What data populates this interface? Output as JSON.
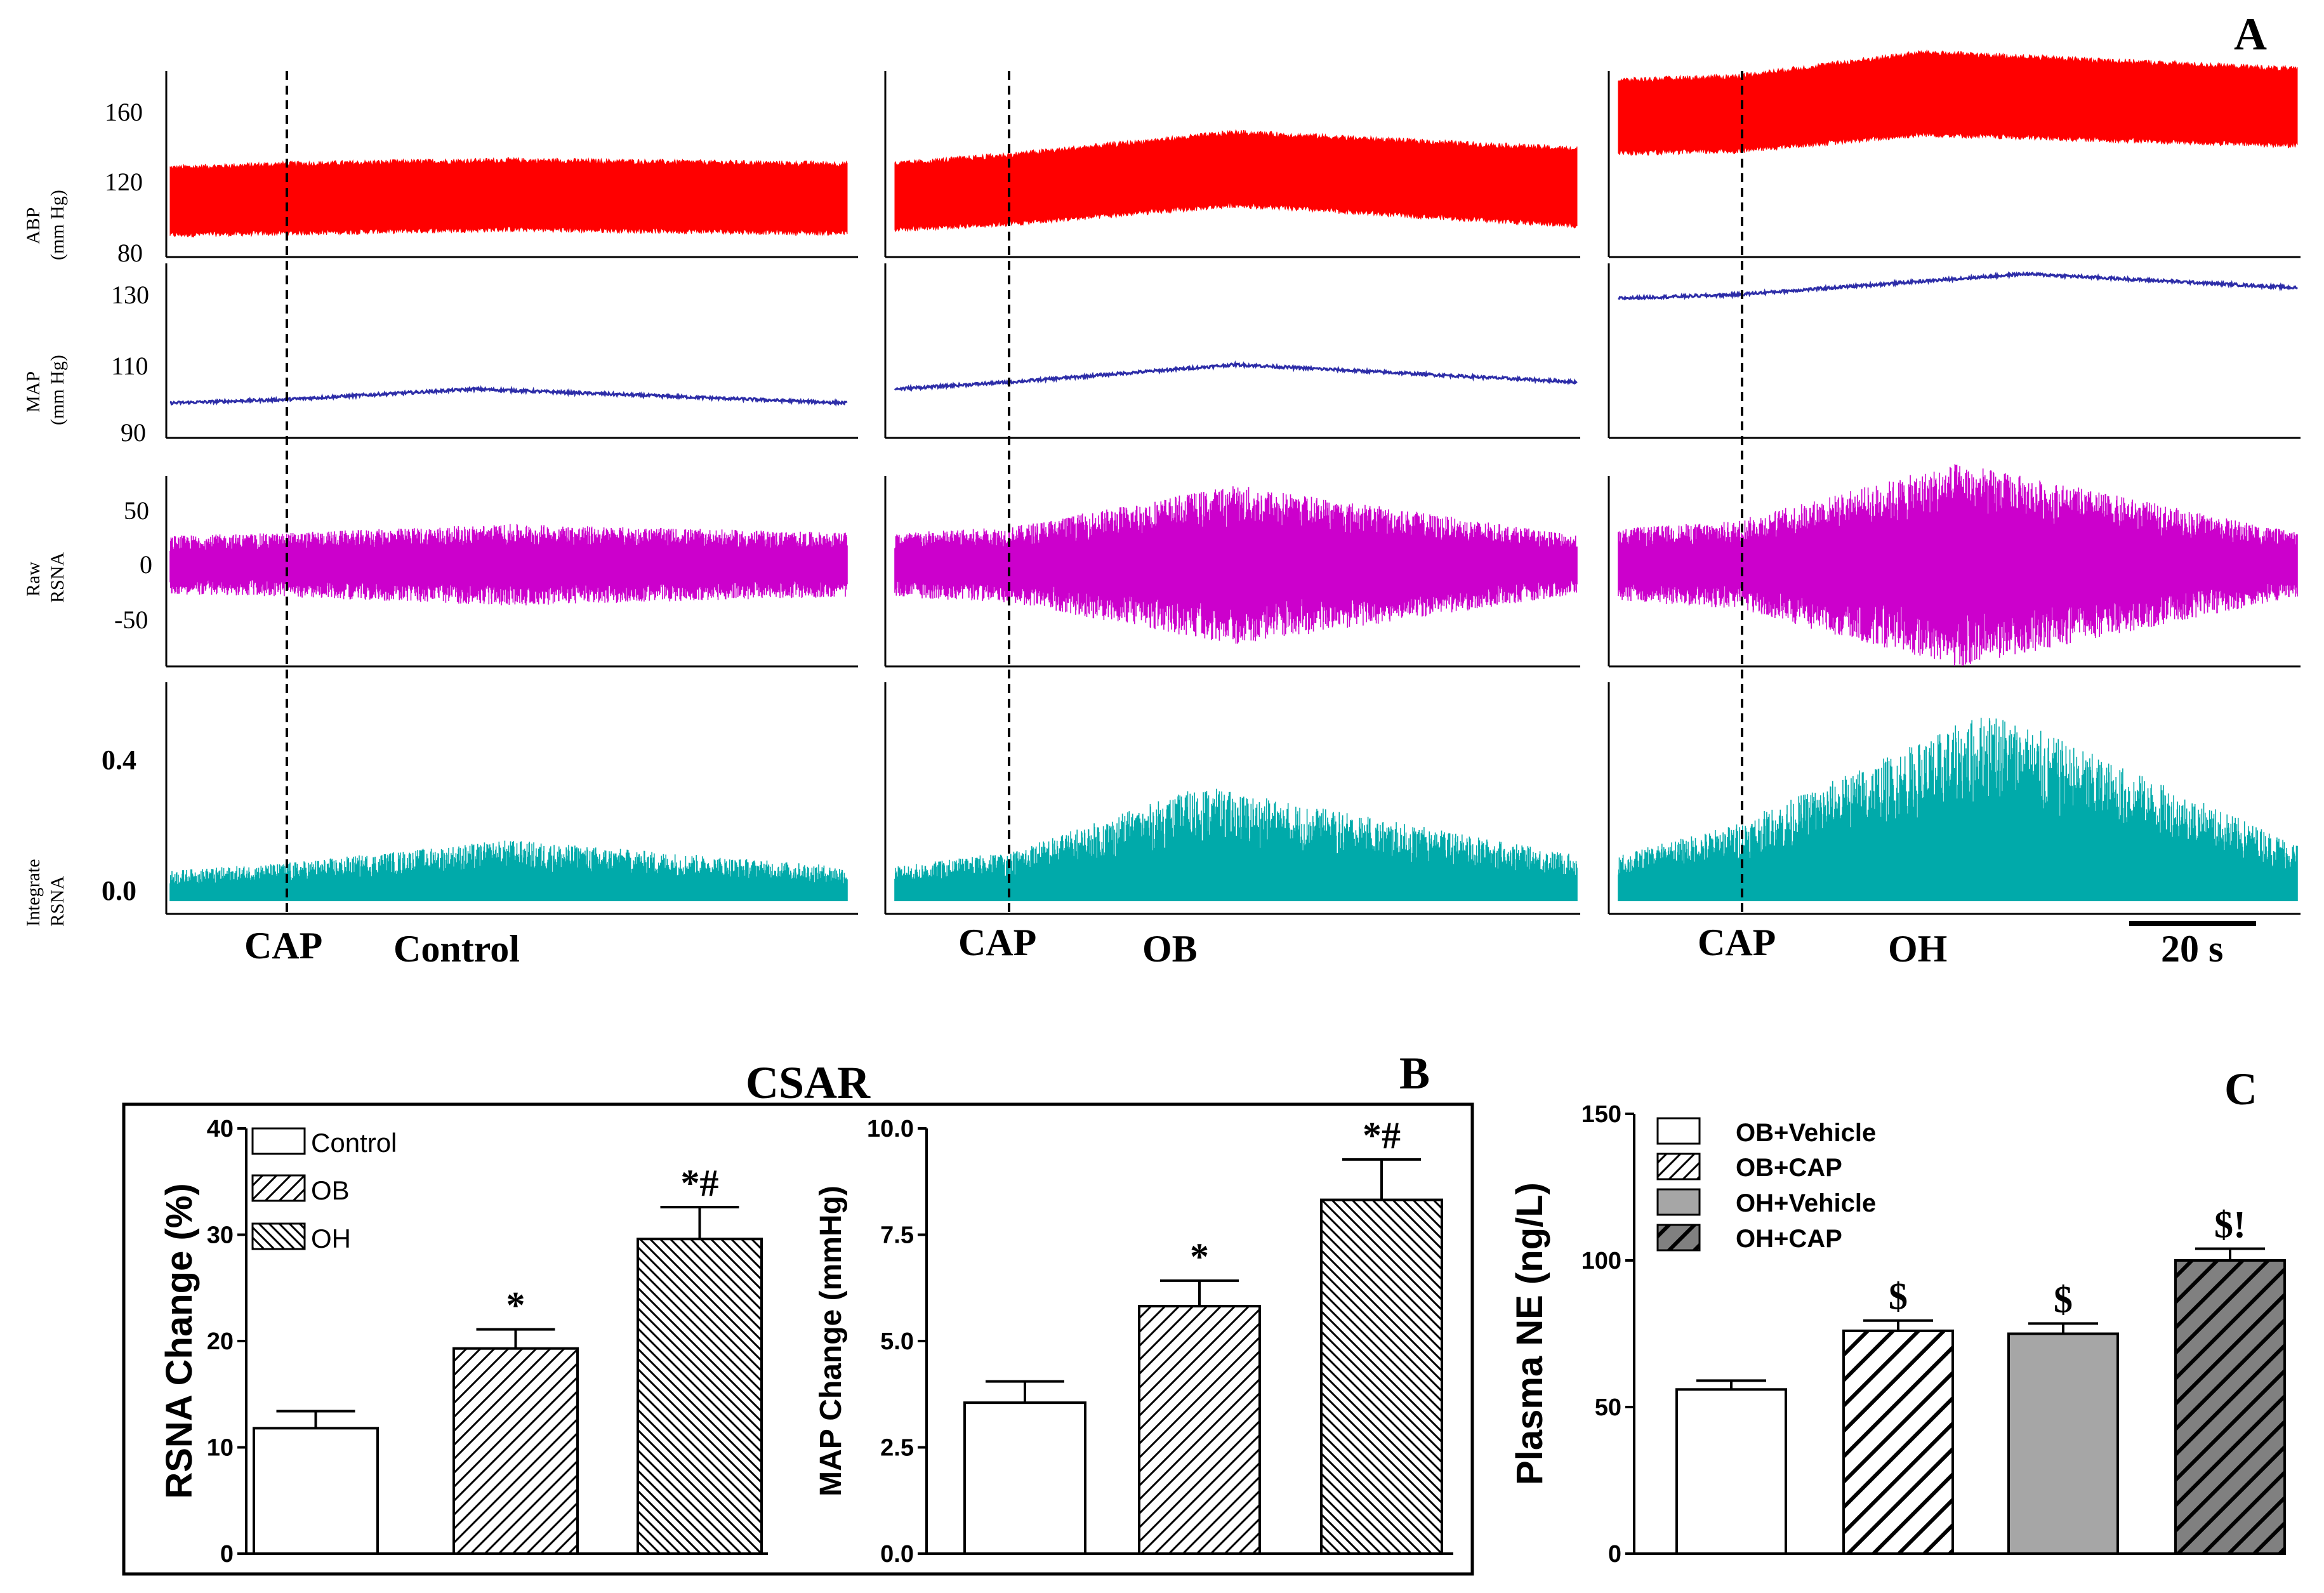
{
  "colors": {
    "abp": "#ff0000",
    "map": "#2d2da8",
    "raw": "#cc00cc",
    "integrate": "#00aaaa",
    "oh_vehicle": "#a6a6a6",
    "oh_cap": "#808080"
  },
  "panel_a": {
    "label": "A",
    "rows": [
      {
        "key": "abp",
        "ylabel": [
          "ABP",
          "(mm Hg)"
        ],
        "ticks": [
          "160",
          "120",
          "80"
        ]
      },
      {
        "key": "map",
        "ylabel": [
          "MAP",
          "(mm Hg)"
        ],
        "ticks": [
          "130",
          "110",
          "90"
        ]
      },
      {
        "key": "raw",
        "ylabel": [
          "Raw",
          "RSNA"
        ],
        "ticks": [
          "50",
          "0",
          "-50"
        ]
      },
      {
        "key": "integrate",
        "ylabel": [
          "Integrate",
          "RSNA"
        ],
        "ticks": [
          "0.4",
          "0.0"
        ]
      }
    ],
    "groups": [
      "Control",
      "OB",
      "OH"
    ],
    "marker": "CAP",
    "scale_bar": "20 s"
  },
  "chart_data": [
    {
      "type": "line",
      "title": "A",
      "description_groups": [
        "Control",
        "OB",
        "OH"
      ],
      "series": [
        {
          "name": "ABP (mm Hg) Control",
          "x": [
            0,
            0.17,
            0.5,
            1.0
          ],
          "upper": [
            128,
            130,
            132,
            130
          ],
          "lower": [
            92,
            93,
            95,
            93
          ]
        },
        {
          "name": "ABP (mm Hg) OB",
          "x": [
            0,
            0.17,
            0.5,
            1.0
          ],
          "upper": [
            130,
            135,
            147,
            138
          ],
          "lower": [
            95,
            98,
            108,
            97
          ]
        },
        {
          "name": "ABP (mm Hg) OH",
          "x": [
            0,
            0.17,
            0.45,
            1.0
          ],
          "upper": [
            175,
            177,
            190,
            181
          ],
          "lower": [
            136,
            137,
            146,
            140
          ]
        },
        {
          "name": "MAP (mm Hg) Control",
          "x": [
            0,
            0.17,
            0.45,
            1.0
          ],
          "values": [
            100,
            101,
            104,
            100
          ]
        },
        {
          "name": "MAP (mm Hg) OB",
          "x": [
            0,
            0.17,
            0.5,
            1.0
          ],
          "values": [
            104,
            106,
            111,
            106
          ]
        },
        {
          "name": "MAP (mm Hg) OH",
          "x": [
            0,
            0.17,
            0.6,
            1.0
          ],
          "values": [
            130,
            131,
            137,
            133
          ]
        },
        {
          "name": "Raw RSNA Control",
          "x": [
            0,
            0.17,
            0.5,
            1.0
          ],
          "amplitude": [
            20,
            22,
            28,
            22
          ]
        },
        {
          "name": "Raw RSNA OB",
          "x": [
            0,
            0.17,
            0.5,
            1.0
          ],
          "amplitude": [
            22,
            26,
            55,
            20
          ]
        },
        {
          "name": "Raw RSNA OH",
          "x": [
            0,
            0.17,
            0.5,
            1.0
          ],
          "amplitude": [
            25,
            30,
            70,
            22
          ]
        },
        {
          "name": "Integrate RSNA Control",
          "x": [
            0,
            0.17,
            0.5,
            1.0
          ],
          "peak": [
            0.08,
            0.1,
            0.16,
            0.09
          ]
        },
        {
          "name": "Integrate RSNA OB",
          "x": [
            0,
            0.17,
            0.45,
            1.0
          ],
          "peak": [
            0.09,
            0.13,
            0.3,
            0.12
          ]
        },
        {
          "name": "Integrate RSNA OH",
          "x": [
            0,
            0.17,
            0.55,
            1.0
          ],
          "peak": [
            0.12,
            0.2,
            0.5,
            0.15
          ]
        }
      ]
    },
    {
      "type": "bar",
      "title": "CSAR",
      "panel_label": "B",
      "categories": [
        "Control",
        "OB",
        "OH"
      ],
      "values": [
        11.8,
        19.3,
        29.6
      ],
      "errors": [
        1.6,
        1.8,
        3.0
      ],
      "annotations": [
        "",
        "*",
        "*#"
      ],
      "ylabel": "RSNA Change (%)",
      "ylim": [
        0,
        40
      ],
      "yticks": [
        "0",
        "10",
        "20",
        "30",
        "40"
      ],
      "legend": [
        "Control",
        "OB",
        "OH"
      ]
    },
    {
      "type": "bar",
      "categories": [
        "Control",
        "OB",
        "OH"
      ],
      "values": [
        3.55,
        5.82,
        8.32
      ],
      "errors": [
        0.5,
        0.6,
        0.95
      ],
      "annotations": [
        "",
        "*",
        "*#"
      ],
      "ylabel": "MAP Change (mmHg)",
      "ylim": [
        0,
        10
      ],
      "yticks": [
        "0.0",
        "2.5",
        "5.0",
        "7.5",
        "10.0"
      ]
    },
    {
      "type": "bar",
      "panel_label": "C",
      "categories": [
        "OB+Vehicle",
        "OB+CAP",
        "OH+Vehicle",
        "OH+CAP"
      ],
      "values": [
        56,
        76,
        75,
        100
      ],
      "errors": [
        3,
        3.5,
        3.5,
        4
      ],
      "annotations": [
        "",
        "$",
        "$",
        "$!"
      ],
      "ylabel": "Plasma NE (ng/L)",
      "ylim": [
        0,
        150
      ],
      "yticks": [
        "0",
        "50",
        "100",
        "150"
      ],
      "legend": [
        "OB+Vehicle",
        "OB+CAP",
        "OH+Vehicle",
        "OH+CAP"
      ]
    }
  ]
}
